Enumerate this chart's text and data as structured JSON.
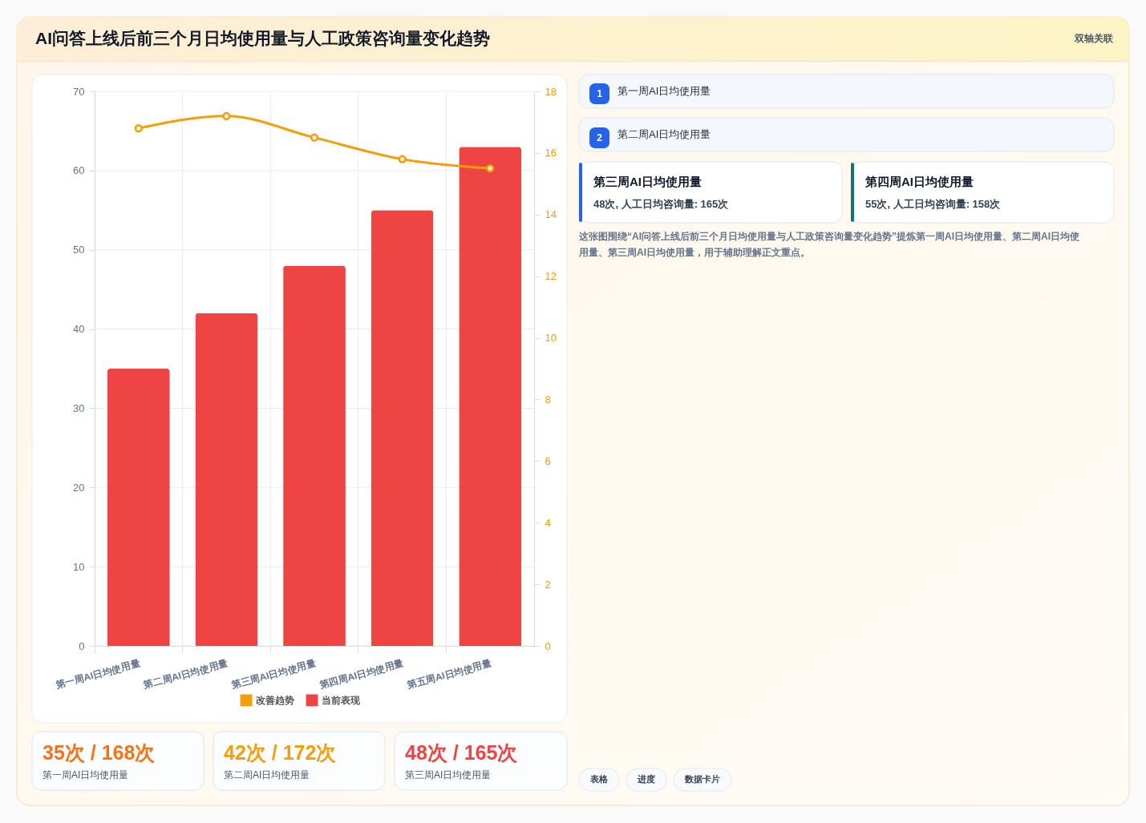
{
  "chart_data": {
    "type": "bar",
    "title": "AI问答上线后前三个月日均使用量与人工政策咨询量变化趋势",
    "categories": [
      "第一周AI日均使用量",
      "第二周AI日均使用量",
      "第三周AI日均使用量",
      "第四周AI日均使用量",
      "第五周AI日均使用量"
    ],
    "series": [
      {
        "name": "改善趋势",
        "type": "line",
        "axis": "y2",
        "color": "#f59e0b",
        "values": [
          16.8,
          17.2,
          16.5,
          15.8,
          15.5
        ]
      },
      {
        "name": "当前表现",
        "color": "#ef4444",
        "values": [
          35,
          42,
          48,
          55,
          63
        ]
      }
    ],
    "ylim": [
      0,
      70
    ],
    "yticks": [
      0,
      10,
      20,
      30,
      40,
      50,
      60,
      70
    ],
    "y2lim": [
      0,
      18
    ],
    "y2ticks": [
      0,
      2,
      4,
      6,
      8,
      10,
      12,
      14,
      16,
      18
    ],
    "grid": true,
    "legend": "bottom",
    "marker": "circle",
    "line_style": "solid",
    "annotations": [
      "双轴关联",
      "1",
      "第一周AI日均使用量",
      "2",
      "第二周AI日均使用量",
      "第三周AI日均使用量",
      "48次, 人工日均咨询量: 165次",
      "第四周AI日均使用量",
      "55次, 人工日均咨询量: 158次",
      "这张图围绕“AI问答上线后前三个月日均使用量与人工政策咨询量变化趋势”提炼第一周AI日均使用量、第二周AI日均使用量、第三周AI日均使用量，用于辅助理解正文重点。",
      "35次 / 168次",
      "第一周AI日均使用量",
      "42次 / 172次",
      "第二周AI日均使用量",
      "48次 / 165次",
      "第三周AI日均使用量",
      "表格",
      "进度",
      "数据卡片"
    ]
  }
}
